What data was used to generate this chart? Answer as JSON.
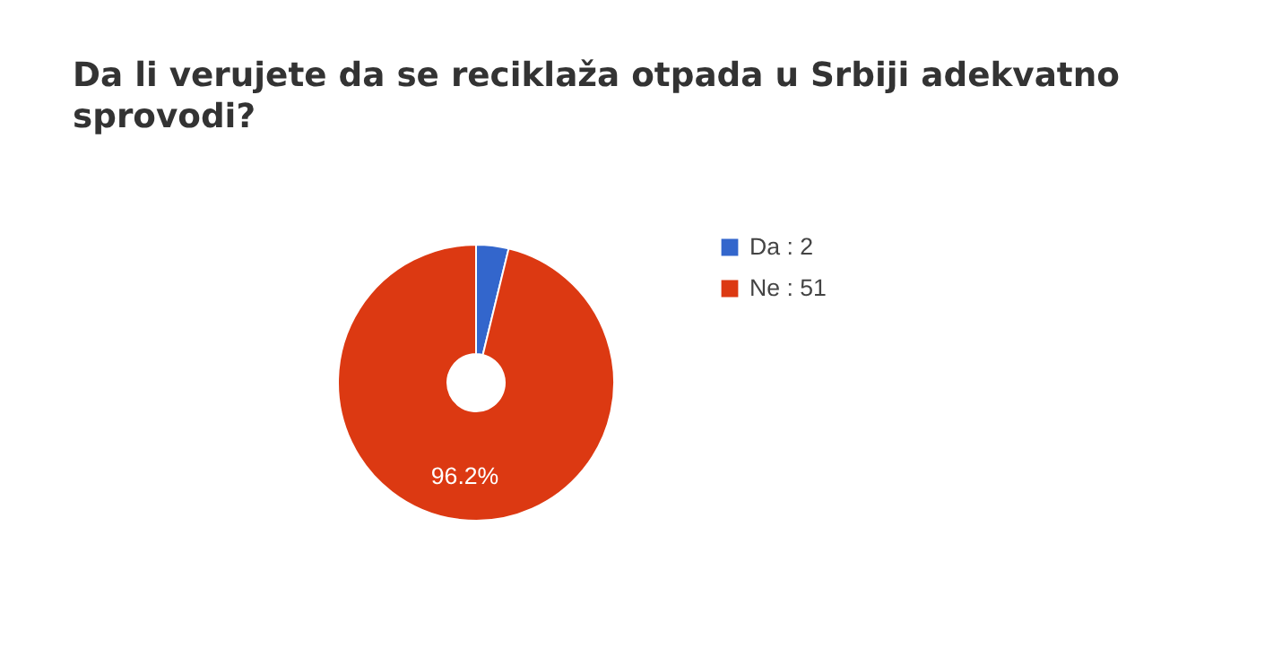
{
  "chart_data": {
    "type": "donut",
    "title": "Da li verujete da se reciklaža otpada u Srbiji adekvatno sprovodi?",
    "categories": [
      "Da : 2",
      "Ne : 51"
    ],
    "values": [
      3.8,
      96.2
    ],
    "colors": [
      "#3366cc",
      "#dc3912"
    ],
    "value_labels": [
      null,
      "96.2%"
    ],
    "legend": "right"
  }
}
